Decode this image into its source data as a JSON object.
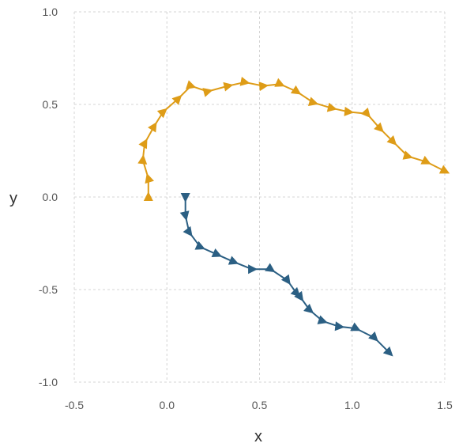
{
  "chart_data": {
    "type": "line",
    "xlabel": "x",
    "ylabel": "y",
    "xlim": [
      -0.5,
      1.5
    ],
    "ylim": [
      -1.0,
      1.0
    ],
    "xticks": [
      "-0.5",
      "0.0",
      "0.5",
      "1.0",
      "1.5"
    ],
    "yticks": [
      "1.0",
      "0.5",
      "0.0",
      "-0.5",
      "-1.0"
    ],
    "grid": true,
    "legend": "none",
    "marker": "triangle pointing along path direction",
    "series": [
      {
        "color": "#DE9C17",
        "x": [
          -0.1,
          -0.1,
          -0.13,
          -0.12,
          -0.07,
          -0.02,
          0.06,
          0.13,
          0.22,
          0.33,
          0.42,
          0.52,
          0.61,
          0.7,
          0.79,
          0.89,
          0.98,
          1.08,
          1.15,
          1.22,
          1.3,
          1.4,
          1.5
        ],
        "y": [
          0.0,
          0.1,
          0.2,
          0.29,
          0.38,
          0.46,
          0.53,
          0.6,
          0.57,
          0.6,
          0.62,
          0.6,
          0.61,
          0.57,
          0.51,
          0.48,
          0.46,
          0.45,
          0.37,
          0.3,
          0.22,
          0.19,
          0.14
        ]
      },
      {
        "color": "#2B5F83",
        "x": [
          0.1,
          0.1,
          0.12,
          0.18,
          0.27,
          0.36,
          0.46,
          0.56,
          0.65,
          0.7,
          0.72,
          0.77,
          0.84,
          0.93,
          1.02,
          1.12,
          1.2
        ],
        "y": [
          0.0,
          -0.1,
          -0.19,
          -0.27,
          -0.31,
          -0.35,
          -0.39,
          -0.39,
          -0.45,
          -0.52,
          -0.54,
          -0.61,
          -0.67,
          -0.7,
          -0.71,
          -0.76,
          -0.84
        ]
      }
    ]
  }
}
